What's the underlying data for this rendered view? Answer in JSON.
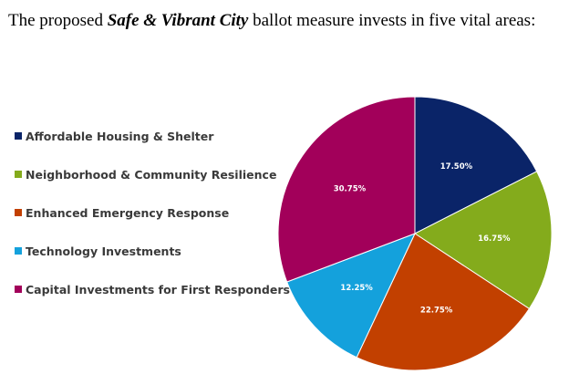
{
  "headline": {
    "prefix": "The proposed",
    "measure_name": "Safe & Vibrant City",
    "suffix": "ballot measure invests in five vital areas:"
  },
  "chart_data": {
    "type": "pie",
    "title": "",
    "legend_position": "left",
    "categories": [
      "Affordable Housing & Shelter",
      "Neighborhood & Community Resilience",
      "Enhanced Emergency Response",
      "Technology Investments",
      "Capital Investments for First Responders"
    ],
    "values": [
      17.5,
      16.75,
      22.75,
      12.25,
      30.75
    ],
    "data_labels": [
      "17.50%",
      "16.75%",
      "22.75%",
      "12.25%",
      "30.75%"
    ],
    "colors": [
      "#0a2468",
      "#84ab1c",
      "#c24000",
      "#14a1dc",
      "#a2005a"
    ],
    "start_angle": "12 o'clock",
    "direction": "clockwise"
  }
}
